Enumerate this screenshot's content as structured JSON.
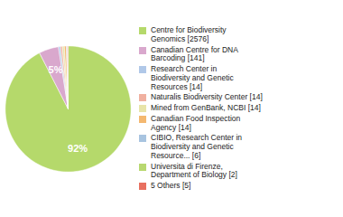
{
  "chart_data": {
    "type": "pie",
    "categories": [
      "Centre for Biodiversity\nGenomics [2576]",
      "Canadian Centre for DNA\nBarcoding [141]",
      "Research Center in\nBiodiversity and Genetic\nResources [14]",
      "Naturalis Biodiversity Center [14]",
      "Mined from GenBank, NCBI [14]",
      "Canadian Food Inspection\nAgency [14]",
      "CIBIO, Research Center in\nBiodiversity and Genetic\nResource... [6]",
      "Universita di Firenze,\nDepartment of Biology [2]",
      "5 Others [5]"
    ],
    "values": [
      2576,
      141,
      14,
      14,
      14,
      14,
      6,
      2,
      5
    ],
    "value_labels": [
      "92%",
      "5%",
      null,
      null,
      null,
      null,
      null,
      null,
      null
    ],
    "colors": [
      "#b5d96b",
      "#d9a8cd",
      "#b0c8e8",
      "#f0b0a0",
      "#e8e4a8",
      "#f4b870",
      "#a8c4e0",
      "#b8d870",
      "#e87060"
    ],
    "legend": "right"
  }
}
